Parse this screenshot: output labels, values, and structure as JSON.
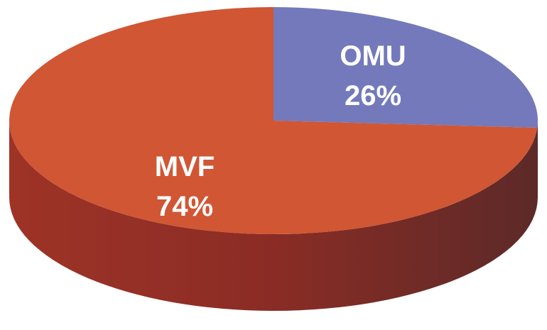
{
  "chart_data": {
    "type": "pie",
    "style": "3d",
    "slices": [
      {
        "label": "OMU",
        "value": 26,
        "value_label": "26%",
        "color": "#7479BB"
      },
      {
        "label": "MVF",
        "value": 74,
        "value_label": "74%",
        "color": "#D15634"
      }
    ],
    "legend": "none"
  }
}
